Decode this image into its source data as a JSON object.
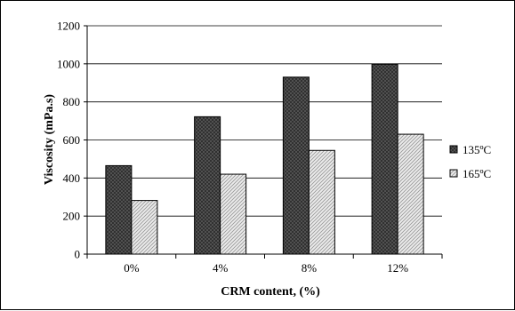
{
  "chart_data": {
    "type": "bar",
    "title": "",
    "xlabel": "CRM content, (%)",
    "ylabel": "Viscosity (mPa.s)",
    "categories": [
      "0%",
      "4%",
      "8%",
      "12%"
    ],
    "ylim": [
      0,
      1200
    ],
    "yticks": [
      0,
      200,
      400,
      600,
      800,
      1000,
      1200
    ],
    "ytick_labels": [
      "0",
      "200",
      "400",
      "600",
      "800",
      "1000",
      "1200"
    ],
    "grid": true,
    "legend_position": "right",
    "series": [
      {
        "name": "135ºC",
        "values": [
          465,
          722,
          930,
          998
        ],
        "pattern": "dark-crosshatch",
        "color": "#5a5a5a"
      },
      {
        "name": "165ºC",
        "values": [
          282,
          420,
          545,
          630
        ],
        "pattern": "light-diagonal",
        "color": "#d4d4d4"
      }
    ]
  }
}
